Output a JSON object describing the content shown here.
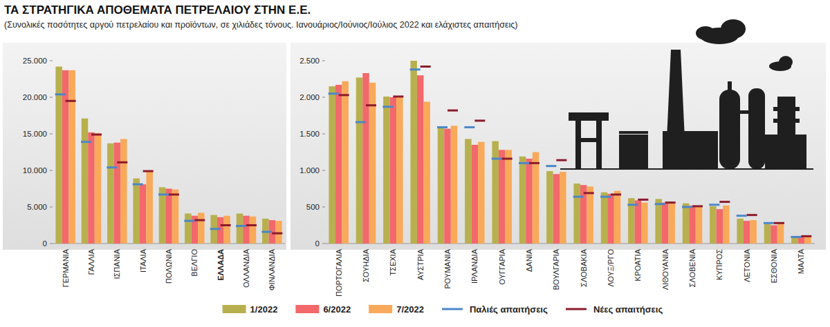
{
  "chart_data": [
    {
      "type": "bar",
      "title": "ΤΑ ΣΤΡΑΤΗΓΙΚΑ ΑΠΟΘΕΜΑΤΑ ΠΕΤΡΕΛΑΙΟΥ ΣΤΗΝ Ε.Ε.",
      "subtitle": "(Συνολικές ποσότητες αργού πετρελαίου και προϊόντων, σε χιλιάδες τόνους. Ιανουάριος/Ιούνιος/Ιούλιος 2022 και ελάχιστες απαιτήσεις)",
      "categories": [
        "ΓΕΡΜΑΝΙΑ",
        "ΓΑΛΛΙΑ",
        "ΙΣΠΑΝΙΑ",
        "ΙΤΑΛΙΑ",
        "ΠΟΛΩΝΙΑ",
        "ΒΕΛΓΙΟ",
        "ΕΛΛΑΔΑ",
        "ΟΛΛΑΝΔΙΑ",
        "ΦΙΝΛΑΝΔΙΑ"
      ],
      "series": [
        {
          "name": "1/2022",
          "color": "#b8b04e",
          "values": [
            24200,
            17100,
            13700,
            8900,
            7700,
            4100,
            3900,
            4100,
            3400
          ]
        },
        {
          "name": "6/2022",
          "color": "#f2686b",
          "values": [
            23700,
            15200,
            13800,
            8100,
            7500,
            3800,
            3600,
            3800,
            3200
          ]
        },
        {
          "name": "7/2022",
          "color": "#f9a95a",
          "values": [
            23700,
            15100,
            14300,
            9800,
            7400,
            4200,
            3800,
            3700,
            3100
          ]
        },
        {
          "name": "Παλιές απαιτήσεις",
          "color": "#4b87c9",
          "type": "scatter",
          "marker": "dash",
          "values": [
            20400,
            13900,
            10400,
            8100,
            6700,
            3100,
            2000,
            2400,
            1600
          ]
        },
        {
          "name": "Νέες απαιτήσεις",
          "color": "#8c1b2c",
          "type": "scatter",
          "marker": "dash",
          "values": [
            19500,
            14900,
            11100,
            9900,
            6700,
            3200,
            2500,
            2500,
            1400
          ]
        }
      ],
      "ylim": [
        0,
        25000
      ],
      "yticks": [
        0,
        {
          "value": 5000,
          "label": "5.000"
        },
        {
          "value": 10000,
          "label": "10.000"
        },
        {
          "value": 15000,
          "label": "15.000"
        },
        {
          "value": 20000,
          "label": "20.000"
        },
        {
          "value": 25000,
          "label": "25.000"
        }
      ],
      "grid": false,
      "legend": "bottom"
    },
    {
      "type": "bar",
      "categories": [
        "ΠΟΡΤΟΓΑΛΙΑ",
        "ΣΟΥΗΔΙΑ",
        "ΤΣΕΧΙΑ",
        "ΑΥΣΤΡΙΑ",
        "ΡΟΥΜΑΝΙΑ",
        "ΙΡΛΑΝΔΙΑ",
        "ΟΥΓΓΑΡΙΑ",
        "ΔΑΝΙΑ",
        "ΒΟΥΛΓΑΡΙΑ",
        "ΣΛΟΒΑΚΙΑ",
        "ΛΟΥΞ/ΡΓΟ",
        "ΚΡΟΑΤΙΑ",
        "ΛΙΘΟΥΑΝΙΑ",
        "ΣΛΟΒΕΝΙΑ",
        "ΚΥΠΡΟΣ",
        "ΛΕΤΟΝΙΑ",
        "ΕΣΘΟΝΙΑ",
        "ΜΑΛΤΑ"
      ],
      "series": [
        {
          "color": "#b8b04e",
          "values": [
            2150,
            2270,
            2010,
            2500,
            1580,
            1430,
            1400,
            1190,
            990,
            820,
            700,
            620,
            610,
            550,
            510,
            340,
            270,
            90
          ]
        },
        {
          "color": "#f2686b",
          "values": [
            2170,
            2330,
            2000,
            2300,
            1570,
            1350,
            1280,
            1160,
            950,
            800,
            680,
            590,
            560,
            520,
            470,
            310,
            250,
            100
          ]
        },
        {
          "color": "#f9a95a",
          "values": [
            2220,
            2200,
            2010,
            1940,
            1610,
            1390,
            1280,
            1250,
            980,
            780,
            720,
            560,
            570,
            510,
            520,
            320,
            280,
            110
          ]
        },
        {
          "color": "#4b87c9",
          "type": "scatter",
          "marker": "dash",
          "values": [
            2050,
            1660,
            1870,
            2380,
            1590,
            1590,
            1160,
            1100,
            1060,
            640,
            640,
            530,
            540,
            500,
            530,
            380,
            280,
            90
          ]
        },
        {
          "color": "#8c1b2c",
          "type": "scatter",
          "marker": "dash",
          "values": [
            2030,
            1890,
            2010,
            2420,
            1820,
            1680,
            1160,
            1100,
            1140,
            690,
            670,
            600,
            560,
            510,
            570,
            390,
            280,
            100
          ]
        }
      ],
      "ylim": [
        0,
        2500
      ],
      "yticks": [
        0,
        500,
        {
          "value": 1000,
          "label": "1.000"
        },
        {
          "value": 1500,
          "label": "1.500"
        },
        {
          "value": 2000,
          "label": "2.000"
        },
        {
          "value": 2500,
          "label": "2.500"
        }
      ],
      "grid": false
    }
  ]
}
